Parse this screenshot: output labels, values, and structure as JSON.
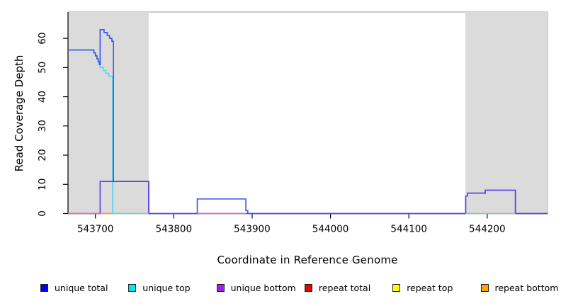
{
  "figure": {
    "background": "#ffffff",
    "plot_background": "#ffffff",
    "box_border_color": "#949494",
    "axis_color": "#000000"
  },
  "chart_data": {
    "type": "line",
    "title": "",
    "xlabel": "Coordinate in Reference Genome",
    "ylabel": "Read Coverage Depth",
    "xlim": [
      543665,
      544277
    ],
    "ylim": [
      0,
      69
    ],
    "x_ticks": [
      543700,
      543800,
      543900,
      544000,
      544100,
      544200
    ],
    "y_ticks": [
      0,
      10,
      20,
      30,
      40,
      50,
      60
    ],
    "grid": false,
    "legend_position": "bottom",
    "shade_color": "#DBDBDB",
    "shaded_regions": [
      {
        "x0": 543665,
        "x1": 543768
      },
      {
        "x0": 544172,
        "x1": 544277
      }
    ],
    "series": [
      {
        "name": "unique top",
        "line_color": "#4FD8F0",
        "segments": [
          [
            [
              543665,
              56
            ],
            [
              543698,
              56
            ],
            [
              543698,
              55
            ],
            [
              543700,
              55
            ],
            [
              543700,
              54
            ],
            [
              543702,
              54
            ],
            [
              543702,
              53
            ],
            [
              543703.5,
              53
            ],
            [
              543703.5,
              52
            ],
            [
              543705,
              52
            ],
            [
              543705,
              51
            ],
            [
              543706,
              51
            ],
            [
              543706,
              50
            ],
            [
              543710,
              50
            ],
            [
              543710,
              49
            ],
            [
              543713,
              49
            ],
            [
              543713,
              48
            ],
            [
              543717,
              48
            ],
            [
              543717,
              47
            ],
            [
              543722,
              47
            ],
            [
              543722,
              0
            ],
            [
              543768,
              0
            ]
          ]
        ]
      },
      {
        "name": "unique total",
        "line_color": "#3355EE",
        "segments": [
          [
            [
              543665,
              56
            ],
            [
              543698,
              56
            ],
            [
              543698,
              55
            ],
            [
              543700,
              55
            ],
            [
              543700,
              54
            ],
            [
              543702,
              54
            ],
            [
              543702,
              53
            ],
            [
              543703.5,
              53
            ],
            [
              543703.5,
              52
            ],
            [
              543705,
              52
            ],
            [
              543705,
              51
            ],
            [
              543706,
              51
            ],
            [
              543706,
              63
            ],
            [
              543711,
              63
            ],
            [
              543711,
              62
            ],
            [
              543715,
              62
            ],
            [
              543715,
              61
            ],
            [
              543718,
              61
            ],
            [
              543718,
              60
            ],
            [
              543721,
              60
            ],
            [
              543721,
              59
            ],
            [
              543723,
              59
            ],
            [
              543723,
              11
            ],
            [
              543768,
              11
            ],
            [
              543768,
              0
            ],
            [
              543830,
              0
            ],
            [
              543830,
              5
            ],
            [
              543892,
              5
            ],
            [
              543892,
              1
            ],
            [
              543894.5,
              1
            ],
            [
              543894.5,
              0
            ],
            [
              544172.5,
              0
            ],
            [
              544172.5,
              6
            ],
            [
              544174.7,
              6
            ],
            [
              544174.7,
              7
            ],
            [
              544197.5,
              7
            ],
            [
              544197.5,
              8
            ],
            [
              544236,
              8
            ],
            [
              544236,
              0
            ],
            [
              544277,
              0
            ]
          ]
        ]
      },
      {
        "name": "unique bottom",
        "line_color": "#5F3FE9",
        "segments": [
          [
            [
              543665,
              0
            ],
            [
              543706,
              0
            ],
            [
              543706,
              11
            ],
            [
              543768,
              11
            ],
            [
              543768,
              0
            ],
            [
              544172.5,
              0
            ],
            [
              544172.5,
              6
            ],
            [
              544174.7,
              6
            ],
            [
              544174.7,
              7
            ],
            [
              544197.5,
              7
            ],
            [
              544197.5,
              8
            ],
            [
              544236,
              8
            ],
            [
              544236,
              0
            ],
            [
              544277,
              0
            ]
          ]
        ]
      },
      {
        "name": "repeat total",
        "line_color": "#EE7082",
        "segments": [
          [
            [
              543665,
              0
            ],
            [
              543707,
              0
            ]
          ],
          [
            [
              543830,
              0
            ],
            [
              543892,
              0
            ]
          ]
        ]
      },
      {
        "name": "repeat bottom",
        "line_color": "#FFA21E",
        "segments": [
          [
            [
              543707,
              0
            ],
            [
              543720.5,
              0
            ]
          ]
        ]
      },
      {
        "name": "repeat top",
        "line_color": "#92CE92",
        "segments": [
          [
            [
              543720.5,
              0
            ],
            [
              543768,
              0
            ]
          ],
          [
            [
              544172.5,
              0
            ],
            [
              544236,
              0
            ]
          ]
        ]
      }
    ]
  },
  "legend": {
    "entries": [
      {
        "label": "unique total",
        "color": "#0000EE"
      },
      {
        "label": "unique top",
        "color": "#00E5EE"
      },
      {
        "label": "unique bottom",
        "color": "#A020F0"
      },
      {
        "label": "repeat total",
        "color": "#E60000"
      },
      {
        "label": "repeat top",
        "color": "#FFFF00"
      },
      {
        "label": "repeat bottom",
        "color": "#FFA500"
      }
    ]
  }
}
